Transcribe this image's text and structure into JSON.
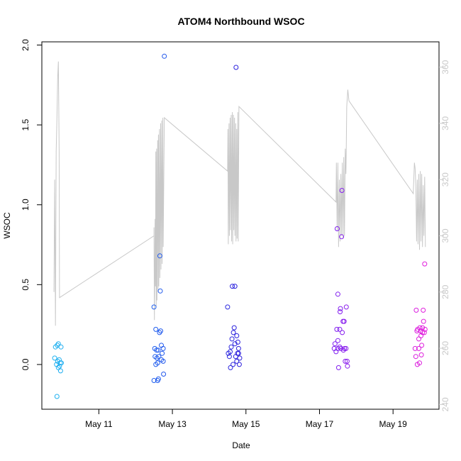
{
  "chart_data": {
    "type": "scatter",
    "title": "ATOM4 Northbound WSOC",
    "xlabel": "Date",
    "ylabel": "WSOC",
    "x_ticks": [
      "May 11",
      "May 13",
      "May 15",
      "May 17",
      "May 19"
    ],
    "x_tick_days": [
      11,
      13,
      15,
      17,
      19
    ],
    "xlim_days": [
      9.45,
      20.25
    ],
    "ylim": [
      -0.28,
      2.02
    ],
    "y_ticks": [
      "0.0",
      "0.5",
      "1.0",
      "1.5",
      "2.0"
    ],
    "y_tick_values": [
      0.0,
      0.5,
      1.0,
      1.5,
      2.0
    ],
    "y2_ticks": [
      "240",
      "260",
      "280",
      "300",
      "320",
      "340",
      "360"
    ],
    "y2_tick_values": [
      240,
      260,
      280,
      300,
      320,
      340,
      360
    ],
    "y2lim": [
      238.3,
      369.0
    ],
    "grid": false,
    "legend": "none",
    "colors": {
      "scatter_gradient": [
        "#1eb4f0",
        "#1e64f0",
        "#2d1edc",
        "#7d1ef0",
        "#e61edc"
      ],
      "secondary_line": "#c8c8c8",
      "axis": "#000000",
      "secondary_axis": "#c8c8c8"
    },
    "scatter_points": [
      [
        9.8,
        0.04
      ],
      [
        9.82,
        0.11
      ],
      [
        9.85,
        0.0
      ],
      [
        9.86,
        -0.2
      ],
      [
        9.87,
        0.12
      ],
      [
        9.88,
        0.02
      ],
      [
        9.9,
        -0.02
      ],
      [
        9.9,
        0.13
      ],
      [
        9.92,
        0.03
      ],
      [
        9.93,
        -0.01
      ],
      [
        9.95,
        0.01
      ],
      [
        9.96,
        -0.04
      ],
      [
        9.97,
        0.11
      ],
      [
        9.98,
        0.01
      ],
      [
        12.5,
        0.36
      ],
      [
        12.5,
        -0.1
      ],
      [
        12.52,
        0.1
      ],
      [
        12.53,
        0.05
      ],
      [
        12.55,
        0.22
      ],
      [
        12.55,
        0.0
      ],
      [
        12.57,
        0.09
      ],
      [
        12.58,
        0.04
      ],
      [
        12.6,
        -0.1
      ],
      [
        12.6,
        0.01
      ],
      [
        12.61,
        0.09
      ],
      [
        12.62,
        -0.09
      ],
      [
        12.63,
        0.05
      ],
      [
        12.65,
        0.2
      ],
      [
        12.66,
        0.68
      ],
      [
        12.67,
        0.46
      ],
      [
        12.68,
        0.21
      ],
      [
        12.7,
        0.03
      ],
      [
        12.7,
        0.12
      ],
      [
        12.72,
        0.07
      ],
      [
        12.75,
        0.1
      ],
      [
        12.75,
        0.02
      ],
      [
        12.76,
        -0.06
      ],
      [
        12.78,
        1.93
      ],
      [
        14.5,
        0.36
      ],
      [
        14.52,
        0.07
      ],
      [
        14.55,
        0.05
      ],
      [
        14.57,
        0.08
      ],
      [
        14.58,
        -0.02
      ],
      [
        14.6,
        0.11
      ],
      [
        14.62,
        0.16
      ],
      [
        14.63,
        0.49
      ],
      [
        14.65,
        0.0
      ],
      [
        14.66,
        0.2
      ],
      [
        14.68,
        0.23
      ],
      [
        14.7,
        0.49
      ],
      [
        14.7,
        0.13
      ],
      [
        14.72,
        0.05
      ],
      [
        14.73,
        1.86
      ],
      [
        14.75,
        0.18
      ],
      [
        14.75,
        0.02
      ],
      [
        14.77,
        0.07
      ],
      [
        14.78,
        0.14
      ],
      [
        14.8,
        0.1
      ],
      [
        14.8,
        0.07
      ],
      [
        14.82,
        0.0
      ],
      [
        14.83,
        0.04
      ],
      [
        17.4,
        0.1
      ],
      [
        17.42,
        0.13
      ],
      [
        17.45,
        0.08
      ],
      [
        17.47,
        0.22
      ],
      [
        17.48,
        0.85
      ],
      [
        17.5,
        0.44
      ],
      [
        17.5,
        0.15
      ],
      [
        17.52,
        -0.02
      ],
      [
        17.55,
        0.11
      ],
      [
        17.56,
        0.33
      ],
      [
        17.57,
        0.35
      ],
      [
        17.58,
        0.1
      ],
      [
        17.6,
        0.8
      ],
      [
        17.61,
        1.09
      ],
      [
        17.62,
        0.2
      ],
      [
        17.64,
        0.27
      ],
      [
        17.65,
        0.09
      ],
      [
        17.67,
        0.27
      ],
      [
        17.68,
        0.1
      ],
      [
        17.7,
        0.02
      ],
      [
        17.72,
        0.1
      ],
      [
        17.73,
        0.36
      ],
      [
        17.75,
        0.02
      ],
      [
        17.76,
        -0.01
      ],
      [
        17.5,
        0.1
      ],
      [
        17.55,
        0.22
      ],
      [
        19.6,
        0.1
      ],
      [
        19.62,
        0.05
      ],
      [
        19.63,
        0.34
      ],
      [
        19.65,
        0.21
      ],
      [
        19.66,
        0.0
      ],
      [
        19.67,
        0.22
      ],
      [
        19.7,
        0.1
      ],
      [
        19.72,
        0.01
      ],
      [
        19.73,
        0.23
      ],
      [
        19.75,
        0.21
      ],
      [
        19.76,
        0.18
      ],
      [
        19.77,
        0.06
      ],
      [
        19.8,
        0.23
      ],
      [
        19.8,
        0.2
      ],
      [
        19.82,
        0.34
      ],
      [
        19.83,
        0.27
      ],
      [
        19.85,
        0.2
      ],
      [
        19.86,
        0.63
      ],
      [
        19.87,
        0.22
      ],
      [
        19.7,
        0.16
      ],
      [
        19.78,
        0.12
      ]
    ],
    "secondary_line": [
      [
        9.78,
        280
      ],
      [
        9.8,
        320
      ],
      [
        9.82,
        268
      ],
      [
        9.84,
        330
      ],
      [
        9.86,
        342
      ],
      [
        9.88,
        356
      ],
      [
        9.9,
        362
      ],
      [
        9.92,
        330
      ],
      [
        9.93,
        278
      ],
      [
        12.5,
        300
      ],
      [
        12.5,
        303
      ],
      [
        12.51,
        270
      ],
      [
        12.53,
        306
      ],
      [
        12.54,
        282
      ],
      [
        12.55,
        330
      ],
      [
        12.56,
        275
      ],
      [
        12.57,
        331
      ],
      [
        12.58,
        277
      ],
      [
        12.6,
        334
      ],
      [
        12.61,
        280
      ],
      [
        12.62,
        336
      ],
      [
        12.63,
        282
      ],
      [
        12.65,
        338
      ],
      [
        12.66,
        285
      ],
      [
        12.68,
        340
      ],
      [
        12.69,
        288
      ],
      [
        12.71,
        341
      ],
      [
        12.72,
        290
      ],
      [
        12.74,
        342
      ],
      [
        12.75,
        296
      ],
      [
        12.78,
        342
      ],
      [
        14.5,
        323
      ],
      [
        14.51,
        338
      ],
      [
        14.52,
        297
      ],
      [
        14.54,
        340
      ],
      [
        14.55,
        300
      ],
      [
        14.57,
        342
      ],
      [
        14.58,
        302
      ],
      [
        14.6,
        343
      ],
      [
        14.61,
        298
      ],
      [
        14.63,
        344
      ],
      [
        14.64,
        297
      ],
      [
        14.66,
        343
      ],
      [
        14.67,
        302
      ],
      [
        14.69,
        342
      ],
      [
        14.7,
        300
      ],
      [
        14.72,
        340
      ],
      [
        14.73,
        298
      ],
      [
        14.75,
        338
      ],
      [
        14.76,
        299
      ],
      [
        14.78,
        344
      ],
      [
        14.79,
        298
      ],
      [
        14.81,
        346
      ],
      [
        17.45,
        312
      ],
      [
        17.46,
        326
      ],
      [
        17.48,
        302
      ],
      [
        17.5,
        326
      ],
      [
        17.52,
        296
      ],
      [
        17.54,
        320
      ],
      [
        17.56,
        298
      ],
      [
        17.58,
        322
      ],
      [
        17.6,
        300
      ],
      [
        17.62,
        326
      ],
      [
        17.64,
        299
      ],
      [
        17.66,
        328
      ],
      [
        17.68,
        300
      ],
      [
        17.7,
        331
      ],
      [
        17.72,
        322
      ],
      [
        17.74,
        346
      ],
      [
        17.77,
        352
      ],
      [
        17.8,
        348
      ],
      [
        19.55,
        315
      ],
      [
        19.58,
        326
      ],
      [
        19.6,
        324
      ],
      [
        19.62,
        318
      ],
      [
        19.64,
        298
      ],
      [
        19.66,
        320
      ],
      [
        19.68,
        297
      ],
      [
        19.7,
        322
      ],
      [
        19.72,
        295
      ],
      [
        19.74,
        323
      ],
      [
        19.76,
        298
      ],
      [
        19.78,
        322
      ],
      [
        19.8,
        296
      ],
      [
        19.82,
        318
      ],
      [
        19.84,
        300
      ],
      [
        19.86,
        321
      ],
      [
        19.88,
        296
      ]
    ]
  }
}
